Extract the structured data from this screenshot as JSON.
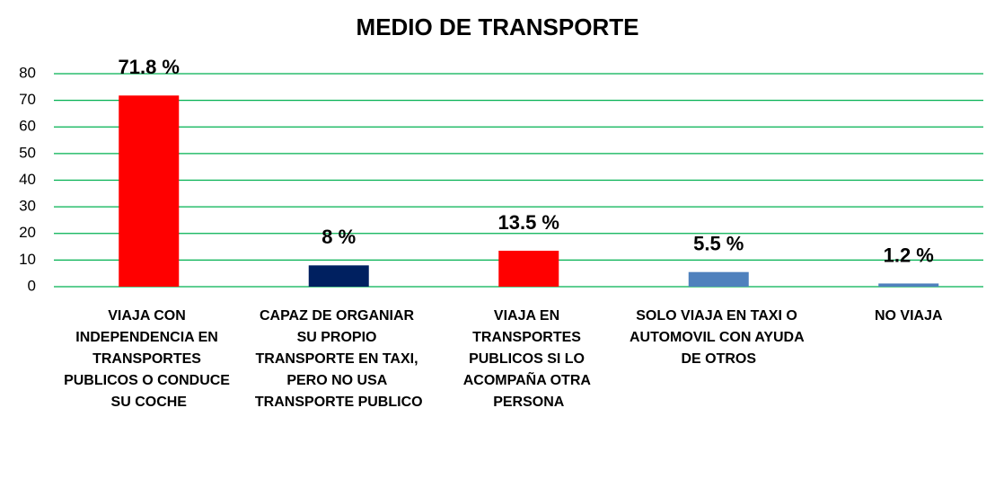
{
  "chart_data": {
    "type": "bar",
    "title": "MEDIO DE TRANSPORTE",
    "categories": [
      "VIAJA CON INDEPENDENCIA EN TRANSPORTES PUBLICOS O CONDUCE SU COCHE",
      "CAPAZ DE ORGANIAR SU PROPIO TRANSPORTE EN TAXI, PERO NO USA TRANSPORTE PUBLICO",
      "VIAJA EN TRANSPORTES PUBLICOS SI LO ACOMPAÑA OTRA PERSONA",
      "SOLO VIAJA EN TAXI O AUTOMOVIL CON AYUDA DE OTROS",
      "NO VIAJA"
    ],
    "values": [
      71.8,
      8,
      13.5,
      5.5,
      1.2
    ],
    "value_labels": [
      "71.8 %",
      "8 %",
      "13.5 %",
      "5.5 %",
      "1.2 %"
    ],
    "colors": [
      "#ff0000",
      "#002060",
      "#ff0000",
      "#4f81bd",
      "#4f81bd"
    ],
    "ylim": [
      0,
      80
    ],
    "yticks": [
      0,
      10,
      20,
      30,
      40,
      50,
      60,
      70,
      80
    ],
    "grid": true,
    "grid_color": "#00b050"
  }
}
